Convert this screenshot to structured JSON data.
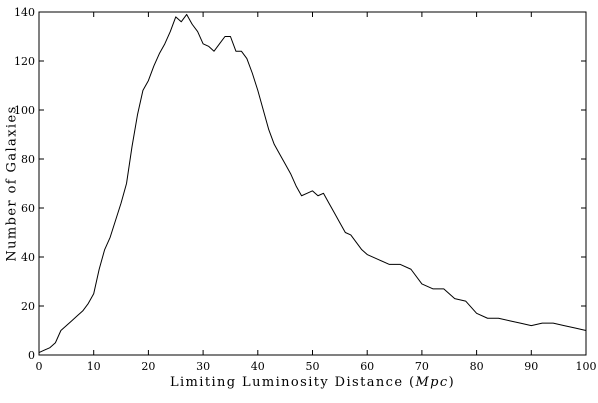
{
  "chart_data": {
    "type": "line",
    "title": "",
    "xlabel": "Limiting Luminosity Distance (Mpc)",
    "xlabel_parts": {
      "text": "Limiting Luminosity Distance (",
      "unit": "Mpc",
      "close": ")"
    },
    "ylabel": "Number of Galaxies",
    "xlim": [
      0,
      100
    ],
    "ylim": [
      0,
      140
    ],
    "xticks": [
      0,
      10,
      20,
      30,
      40,
      50,
      60,
      70,
      80,
      90,
      100
    ],
    "yticks": [
      0,
      20,
      40,
      60,
      80,
      100,
      120,
      140
    ],
    "grid": false,
    "color": "#000000",
    "series": [
      {
        "x": [
          0,
          1,
          2,
          3,
          4,
          5,
          6,
          7,
          8,
          9,
          10,
          11,
          12,
          13,
          14,
          15,
          16,
          17,
          18,
          19,
          20,
          21,
          22,
          23,
          24,
          25,
          26,
          27,
          28,
          29,
          30,
          31,
          32,
          33,
          34,
          35,
          36,
          37,
          38,
          39,
          40,
          41,
          42,
          43,
          44,
          45,
          46,
          47,
          48,
          49,
          50,
          51,
          52,
          53,
          54,
          55,
          56,
          57,
          58,
          59,
          60,
          62,
          64,
          66,
          68,
          70,
          72,
          74,
          76,
          78,
          80,
          82,
          84,
          86,
          88,
          90,
          92,
          94,
          96,
          98,
          100
        ],
        "y": [
          1,
          2,
          3,
          5,
          10,
          12,
          14,
          16,
          18,
          21,
          25,
          35,
          43,
          48,
          55,
          62,
          70,
          85,
          98,
          108,
          112,
          118,
          123,
          127,
          132,
          138,
          136,
          139,
          135,
          132,
          127,
          126,
          124,
          127,
          130,
          130,
          124,
          124,
          121,
          115,
          108,
          100,
          92,
          86,
          82,
          78,
          74,
          69,
          65,
          66,
          67,
          65,
          66,
          62,
          58,
          54,
          50,
          49,
          46,
          43,
          41,
          39,
          37,
          37,
          35,
          29,
          27,
          27,
          23,
          22,
          17,
          15,
          15,
          14,
          13,
          12,
          13,
          13,
          12,
          11,
          10
        ]
      }
    ]
  }
}
